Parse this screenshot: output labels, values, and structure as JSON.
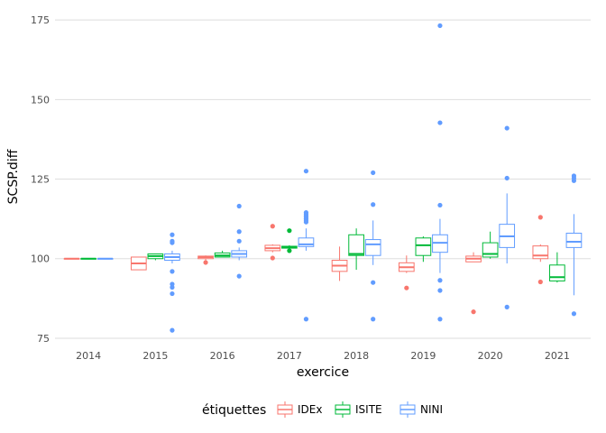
{
  "chart_data": {
    "type": "box",
    "title": "",
    "xlabel": "exercice",
    "ylabel": "SCSP.diff",
    "ylim": [
      73,
      179
    ],
    "yticks": [
      75,
      100,
      125,
      150,
      175
    ],
    "grid": true,
    "categories": [
      "2014",
      "2015",
      "2016",
      "2017",
      "2018",
      "2019",
      "2020",
      "2021"
    ],
    "legend": {
      "title": "étiquettes",
      "position": "bottom",
      "items": [
        "IDEx",
        "ISITE",
        "NINI"
      ]
    },
    "series": [
      {
        "name": "IDEx",
        "color": "#F8766D",
        "boxes": [
          {
            "category": "2014",
            "lower": 100,
            "q1": 100,
            "median": 100,
            "q3": 100,
            "upper": 100,
            "outliers": []
          },
          {
            "category": "2015",
            "lower": 96.5,
            "q1": 96.5,
            "median": 98.5,
            "q3": 100.5,
            "upper": 100.5,
            "outliers": []
          },
          {
            "category": "2016",
            "lower": 99.5,
            "q1": 100,
            "median": 100.5,
            "q3": 100.8,
            "upper": 101,
            "outliers": [
              98.8
            ]
          },
          {
            "category": "2017",
            "lower": 102,
            "q1": 102.5,
            "median": 103.3,
            "q3": 104.2,
            "upper": 104.5,
            "outliers": [
              110.2,
              100.2
            ]
          },
          {
            "category": "2018",
            "lower": 93,
            "q1": 96,
            "median": 97.8,
            "q3": 99.5,
            "upper": 103.8,
            "outliers": []
          },
          {
            "category": "2019",
            "lower": 95.5,
            "q1": 96,
            "median": 97.3,
            "q3": 98.7,
            "upper": 101,
            "outliers": [
              90.8
            ]
          },
          {
            "category": "2020",
            "lower": 99,
            "q1": 99,
            "median": 100,
            "q3": 100.8,
            "upper": 102,
            "outliers": [
              83.3
            ]
          },
          {
            "category": "2021",
            "lower": 99,
            "q1": 100,
            "median": 101,
            "q3": 104,
            "upper": 104.5,
            "outliers": [
              113,
              92.7
            ]
          }
        ]
      },
      {
        "name": "ISITE",
        "color": "#00BA38",
        "boxes": [
          {
            "category": "2014",
            "lower": 100,
            "q1": 100,
            "median": 100,
            "q3": 100,
            "upper": 100,
            "outliers": []
          },
          {
            "category": "2015",
            "lower": 99.5,
            "q1": 100,
            "median": 100.8,
            "q3": 101.5,
            "upper": 101.5,
            "outliers": []
          },
          {
            "category": "2016",
            "lower": 100.5,
            "q1": 100.5,
            "median": 101,
            "q3": 101.8,
            "upper": 102.5,
            "outliers": []
          },
          {
            "category": "2017",
            "lower": 103,
            "q1": 103.3,
            "median": 103.6,
            "q3": 103.9,
            "upper": 104.2,
            "outliers": [
              108.8,
              102.5
            ]
          },
          {
            "category": "2018",
            "lower": 96.5,
            "q1": 101,
            "median": 101.5,
            "q3": 107.5,
            "upper": 109.5,
            "outliers": []
          },
          {
            "category": "2019",
            "lower": 99,
            "q1": 101,
            "median": 104.2,
            "q3": 106.5,
            "upper": 107,
            "outliers": []
          },
          {
            "category": "2020",
            "lower": 100,
            "q1": 100.5,
            "median": 101.5,
            "q3": 105,
            "upper": 108.5,
            "outliers": []
          },
          {
            "category": "2021",
            "lower": 92.5,
            "q1": 93,
            "median": 94.2,
            "q3": 98,
            "upper": 102,
            "outliers": []
          }
        ]
      },
      {
        "name": "NINI",
        "color": "#619CFF",
        "boxes": [
          {
            "category": "2014",
            "lower": 100,
            "q1": 100,
            "median": 100,
            "q3": 100,
            "upper": 100,
            "outliers": []
          },
          {
            "category": "2015",
            "lower": 98.5,
            "q1": 99.5,
            "median": 100.5,
            "q3": 101.5,
            "upper": 102.5,
            "outliers": [
              107.5,
              105.5,
              105,
              96,
              92,
              91,
              89,
              77.5
            ]
          },
          {
            "category": "2016",
            "lower": 99.5,
            "q1": 100.5,
            "median": 101.5,
            "q3": 102.5,
            "upper": 103.5,
            "outliers": [
              116.5,
              108.5,
              105.5,
              94.5
            ]
          },
          {
            "category": "2017",
            "lower": 102.5,
            "q1": 103.8,
            "median": 104.5,
            "q3": 106.5,
            "upper": 109.5,
            "outliers": [
              127.5,
              114.5,
              114,
              113.5,
              113,
              112.5,
              112,
              111.5,
              81
            ]
          },
          {
            "category": "2018",
            "lower": 98,
            "q1": 101,
            "median": 104.5,
            "q3": 106,
            "upper": 112,
            "outliers": [
              127,
              117,
              92.5,
              81
            ]
          },
          {
            "category": "2019",
            "lower": 95.5,
            "q1": 102,
            "median": 105,
            "q3": 107.5,
            "upper": 112.5,
            "outliers": [
              173.2,
              142.7,
              116.8,
              93.2,
              90,
              81
            ]
          },
          {
            "category": "2020",
            "lower": 98.5,
            "q1": 103.5,
            "median": 107,
            "q3": 110.8,
            "upper": 120.5,
            "outliers": [
              141,
              125.3,
              84.8
            ]
          },
          {
            "category": "2021",
            "lower": 88.5,
            "q1": 103.5,
            "median": 105.3,
            "q3": 108,
            "upper": 114,
            "outliers": [
              126,
              125.3,
              124.5,
              82.7
            ]
          }
        ]
      }
    ]
  }
}
